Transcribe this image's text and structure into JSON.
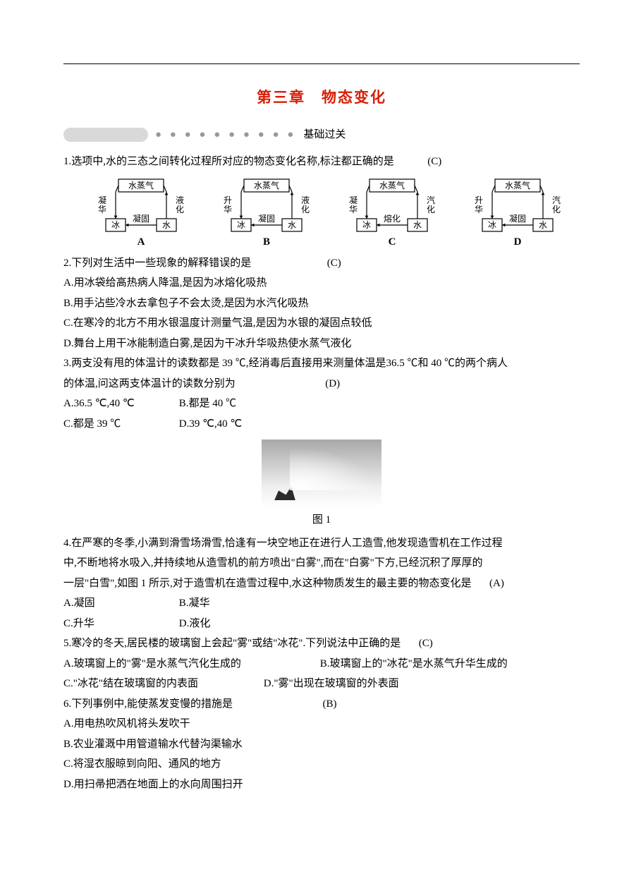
{
  "chapter_title": "第三章　物态变化",
  "section_label": "基础过关",
  "diagrams": {
    "top_label": "水蒸气",
    "bottom_left": "冰",
    "bottom_right": "水",
    "variants": [
      {
        "left": "凝华",
        "right": "液化",
        "mid": "凝固",
        "letter": "A"
      },
      {
        "left": "升华",
        "right": "液化",
        "mid": "凝固",
        "letter": "B"
      },
      {
        "left": "凝华",
        "right": "汽化",
        "mid": "熔化",
        "letter": "C"
      },
      {
        "left": "升华",
        "right": "汽化",
        "mid": "凝固",
        "letter": "D"
      }
    ]
  },
  "fig1_caption": "图 1",
  "q1": {
    "stem": "1.选项中,水的三态之间转化过程所对应的物态变化名称,标注都正确的是",
    "answer": "(C)"
  },
  "q2": {
    "stem": "2.下列对生活中一些现象的解释错误的是",
    "answer": "(C)",
    "A": "A.用冰袋给高热病人降温,是因为冰熔化吸热",
    "B": "B.用手沾些冷水去拿包子不会太烫,是因为水汽化吸热",
    "C": "C.在寒冷的北方不用水银温度计测量气温,是因为水银的凝固点较低",
    "D": "D.舞台上用干冰能制造白雾,是因为干冰升华吸热使水蒸气液化"
  },
  "q3": {
    "stem1": "3.两支没有甩的体温计的读数都是 39 ℃,经消毒后直接用来测量体温是36.5 ℃和 40 ℃的两个病人",
    "stem2": "的体温,问这两支体温计的读数分别为",
    "answer": "(D)",
    "A": "A.36.5 ℃,40 ℃",
    "B": "B.都是 40 ℃",
    "C": "C.都是 39 ℃",
    "D": "D.39 ℃,40 ℃"
  },
  "q4": {
    "stem1": "4.在严寒的冬季,小满到滑雪场滑雪,恰逢有一块空地正在进行人工造雪,他发现造雪机在工作过程",
    "stem2": "中,不断地将水吸入,并持续地从造雪机的前方喷出\"白雾\",而在\"白雾\"下方,已经沉积了厚厚的",
    "stem3": "一层\"白雪\",如图 1 所示,对于造雪机在造雪过程中,水这种物质发生的最主要的物态变化是",
    "answer": "(A)",
    "A": "A.凝固",
    "B": "B.凝华",
    "C": "C.升华",
    "D": "D.液化"
  },
  "q5": {
    "stem": "5.寒冷的冬天,居民楼的玻璃窗上会起\"雾\"或结\"冰花\".下列说法中正确的是",
    "answer": "(C)",
    "A": "A.玻璃窗上的\"雾\"是水蒸气汽化生成的",
    "B": "B.玻璃窗上的\"冰花\"是水蒸气升华生成的",
    "C": "C.\"冰花\"结在玻璃窗的内表面",
    "D": "D.\"雾\"出现在玻璃窗的外表面"
  },
  "q6": {
    "stem": "6.下列事例中,能使蒸发变慢的措施是",
    "answer": "(B)",
    "A": "A.用电热吹风机将头发吹干",
    "B": "B.农业灌溉中用管道输水代替沟渠输水",
    "C": "C.将湿衣服晾到向阳、通风的地方",
    "D": "D.用扫帚把洒在地面上的水向周围扫开"
  }
}
